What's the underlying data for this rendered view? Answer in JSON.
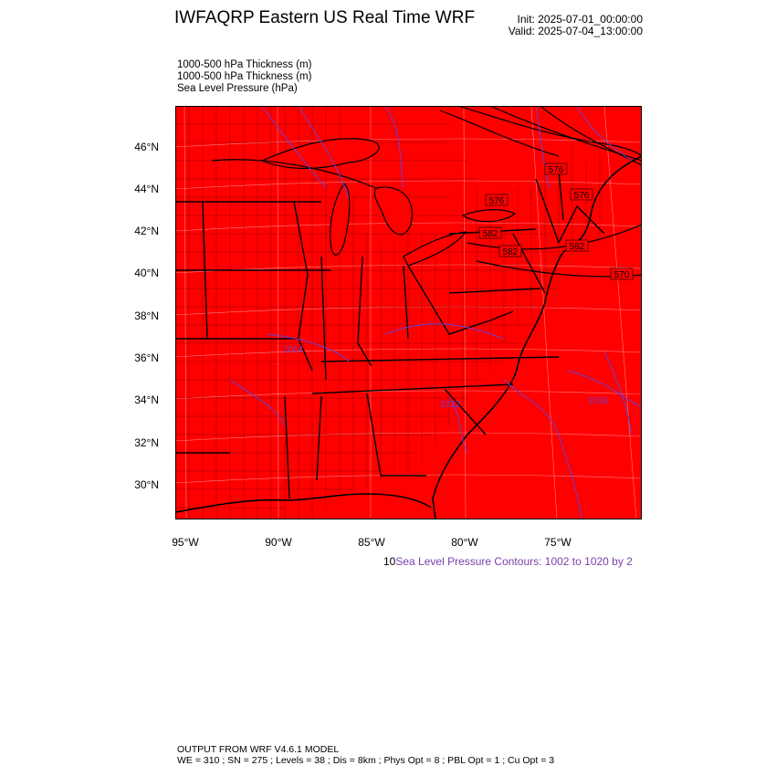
{
  "header": {
    "title": "IWFAQRP Eastern US Real Time WRF",
    "init": "Init: 2025-07-01_00:00:00",
    "valid": "Valid: 2025-07-04_13:00:00"
  },
  "fields": [
    "1000-500 hPa Thickness   (m)",
    "1000-500 hPa Thickness   (m)",
    "Sea Level Pressure   (hPa)"
  ],
  "map": {
    "fill_color": "#ff0000",
    "border_color": "#000000",
    "slp_contour_color": "#6a3fd0",
    "lat_labels": [
      "46°N",
      "44°N",
      "42°N",
      "40°N",
      "38°N",
      "36°N",
      "34°N",
      "32°N",
      "30°N"
    ],
    "lon_labels": [
      "95°W",
      "90°W",
      "85°W",
      "80°W",
      "75°W"
    ],
    "thickness_labels": [
      "576",
      "576",
      "576",
      "582",
      "582",
      "570",
      "582"
    ],
    "slp_labels": [
      "1016",
      "1012",
      "1014"
    ]
  },
  "legend": {
    "prefix": "10",
    "slp_contours": "Sea Level Pressure Contours: 1002 to 1020 by 2"
  },
  "footer": {
    "line1": "OUTPUT FROM WRF V4.6.1 MODEL",
    "line2": "WE = 310 ; SN = 275 ; Levels = 38 ; Dis = 8km ; Phys Opt = 8 ; PBL Opt = 1 ; Cu Opt = 3"
  }
}
